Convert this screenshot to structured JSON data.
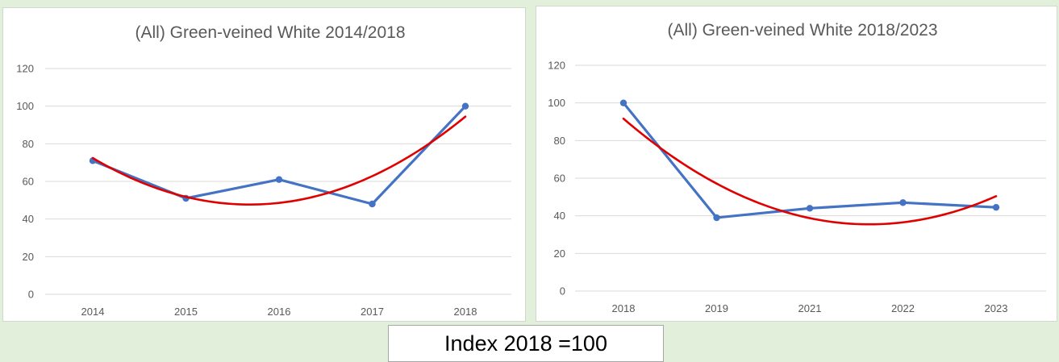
{
  "colors": {
    "series": "#4472c4",
    "trend": "#e00000",
    "background": "#e2efda"
  },
  "caption": "Index 2018 =100",
  "chart_data": [
    {
      "type": "line",
      "title": "(All) Green-veined White 2014/2018",
      "categories": [
        "2014",
        "2015",
        "2016",
        "2017",
        "2018"
      ],
      "series": [
        {
          "values": [
            71,
            51,
            61,
            48,
            100
          ]
        }
      ],
      "trendline": {
        "type": "polynomial",
        "order": 2,
        "values": [
          72.5,
          51.5,
          49,
          62.5,
          94.5
        ]
      },
      "ylim": [
        0,
        120
      ],
      "yticks": [
        "0",
        "20",
        "40",
        "60",
        "80",
        "100",
        "120"
      ],
      "grid": true,
      "legend": "none"
    },
    {
      "type": "line",
      "title": "(All) Green-veined White 2018/2023",
      "categories": [
        "2018",
        "2019",
        "2021",
        "2022",
        "2023"
      ],
      "series": [
        {
          "values": [
            100,
            39,
            44,
            47,
            44.5
          ]
        }
      ],
      "trendline": {
        "type": "polynomial",
        "order": 2,
        "values": [
          91.5,
          57.5,
          38.5,
          36.5,
          50.5
        ]
      },
      "ylim": [
        0,
        120
      ],
      "yticks": [
        "0",
        "20",
        "40",
        "60",
        "80",
        "100",
        "120"
      ],
      "grid": true,
      "legend": "none"
    }
  ]
}
